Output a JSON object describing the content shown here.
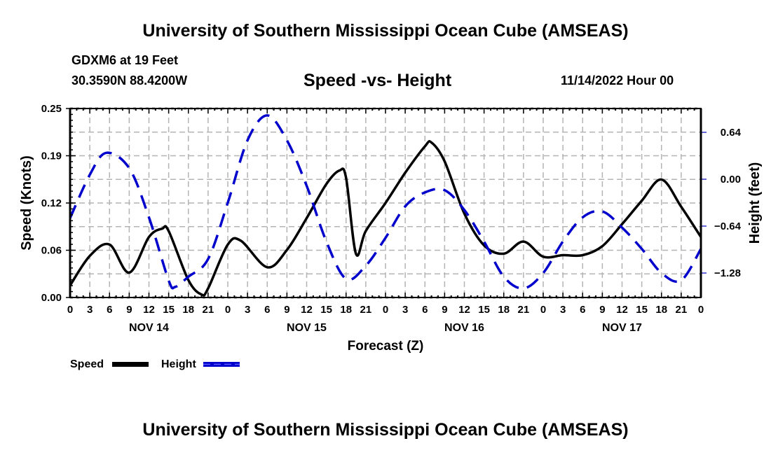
{
  "header": {
    "title": "University of Southern Mississippi Ocean Cube (AMSEAS)",
    "station": "GDXM6 at 19 Feet",
    "coordinates": "30.3590N  88.4200W",
    "subtitle": "Speed -vs- Height",
    "date": "11/14/2022 Hour 00"
  },
  "footer": {
    "title": "University of Southern Mississippi Ocean Cube (AMSEAS)"
  },
  "chart_data": {
    "type": "line",
    "title": "Speed -vs- Height",
    "xlabel": "Forecast (Z)",
    "ylabel": "Speed (Knots)",
    "y2label": "Height (feet)",
    "x_range_hours": [
      0,
      96
    ],
    "ylim": [
      0,
      0.25
    ],
    "y2lim": [
      -1.614,
      0.965
    ],
    "yticks": [
      {
        "value": 0.0,
        "label": "0.00"
      },
      {
        "value": 0.0625,
        "label": "0.06"
      },
      {
        "value": 0.125,
        "label": "0.12"
      },
      {
        "value": 0.1875,
        "label": "0.19"
      },
      {
        "value": 0.25,
        "label": "0.25"
      }
    ],
    "y2ticks": [
      {
        "value": 0.64,
        "label": "0.64"
      },
      {
        "value": 0.0,
        "label": "0.00"
      },
      {
        "value": -0.64,
        "label": "−0.64"
      },
      {
        "value": -1.28,
        "label": "−1.28"
      }
    ],
    "xtick_labels": [
      "0",
      "3",
      "6",
      "9",
      "12",
      "15",
      "18",
      "21",
      "0",
      "3",
      "6",
      "9",
      "12",
      "15",
      "18",
      "21",
      "0",
      "3",
      "6",
      "9",
      "12",
      "15",
      "18",
      "21",
      "0",
      "3",
      "6",
      "9",
      "12",
      "15",
      "18",
      "21",
      "0"
    ],
    "day_labels": [
      {
        "hour": 12,
        "label": "NOV 14"
      },
      {
        "hour": 36,
        "label": "NOV 15"
      },
      {
        "hour": 60,
        "label": "NOV 16"
      },
      {
        "hour": 84,
        "label": "NOV 17"
      }
    ],
    "grid": true,
    "legend_position": "bottom-left",
    "series": [
      {
        "name": "Speed",
        "axis": "left",
        "color": "#000000",
        "style": "solid",
        "x": [
          0,
          3,
          6,
          9,
          12,
          14,
          15,
          18,
          20,
          21,
          24,
          26,
          30,
          33,
          36,
          39,
          41,
          42,
          43.5,
          45,
          48,
          51,
          54,
          55,
          57,
          60,
          63,
          66,
          69,
          72,
          75,
          78,
          81,
          84,
          87,
          90,
          93,
          96
        ],
        "values": [
          0.016,
          0.055,
          0.07,
          0.033,
          0.08,
          0.091,
          0.088,
          0.023,
          0.004,
          0.012,
          0.07,
          0.075,
          0.04,
          0.063,
          0.105,
          0.15,
          0.168,
          0.158,
          0.058,
          0.088,
          0.125,
          0.165,
          0.2,
          0.205,
          0.18,
          0.111,
          0.069,
          0.058,
          0.074,
          0.054,
          0.056,
          0.056,
          0.068,
          0.097,
          0.128,
          0.156,
          0.12,
          0.08
        ]
      },
      {
        "name": "Height",
        "axis": "right",
        "color": "#0000cc",
        "style": "dashed",
        "x": [
          0,
          3,
          5.5,
          9,
          12,
          15,
          16,
          18,
          21,
          24,
          27,
          30,
          33,
          36,
          39,
          42,
          45,
          48,
          51,
          54,
          57,
          60,
          63,
          66,
          69,
          72,
          75,
          78,
          81,
          84,
          87,
          90,
          93,
          96
        ],
        "values": [
          -0.53,
          0.06,
          0.36,
          0.15,
          -0.52,
          -1.38,
          -1.47,
          -1.33,
          -1.09,
          -0.32,
          0.53,
          0.87,
          0.53,
          -0.09,
          -0.85,
          -1.36,
          -1.18,
          -0.8,
          -0.37,
          -0.18,
          -0.15,
          -0.42,
          -0.85,
          -1.33,
          -1.49,
          -1.28,
          -0.85,
          -0.52,
          -0.44,
          -0.66,
          -0.95,
          -1.28,
          -1.38,
          -0.95
        ]
      }
    ]
  }
}
